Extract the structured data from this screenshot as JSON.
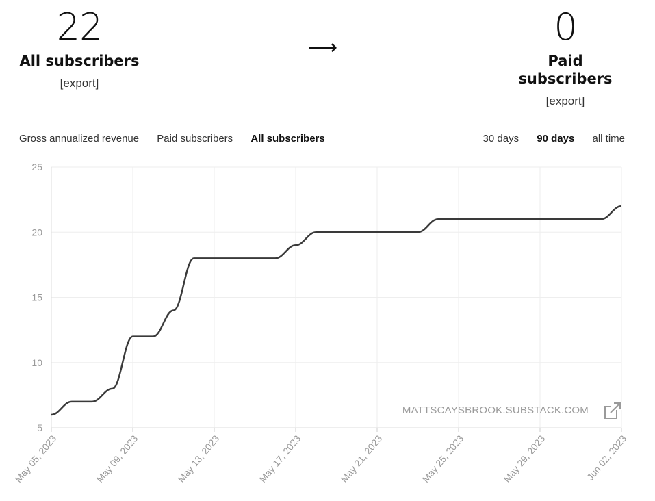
{
  "stats": {
    "all": {
      "value": "22",
      "label": "All subscribers",
      "export": "[export]"
    },
    "arrow": "⟶",
    "paid": {
      "value": "0",
      "label": "Paid subscribers",
      "export": "[export]"
    }
  },
  "metric_tabs": [
    {
      "label": "Gross annualized revenue",
      "active": false
    },
    {
      "label": "Paid subscribers",
      "active": false
    },
    {
      "label": "All subscribers",
      "active": true
    }
  ],
  "range_tabs": [
    {
      "label": "30 days",
      "active": false
    },
    {
      "label": "90 days",
      "active": true
    },
    {
      "label": "all time",
      "active": false
    }
  ],
  "watermark": "MATTSCAYSBROOK.SUBSTACK.COM",
  "colors": {
    "line": "#3a3a3a",
    "grid": "#eeeeee",
    "tick": "#999999"
  },
  "chart_data": {
    "type": "line",
    "x": [
      "May 05, 2023",
      "May 06, 2023",
      "May 07, 2023",
      "May 08, 2023",
      "May 09, 2023",
      "May 10, 2023",
      "May 11, 2023",
      "May 12, 2023",
      "May 13, 2023",
      "May 14, 2023",
      "May 15, 2023",
      "May 16, 2023",
      "May 17, 2023",
      "May 18, 2023",
      "May 19, 2023",
      "May 20, 2023",
      "May 21, 2023",
      "May 22, 2023",
      "May 23, 2023",
      "May 24, 2023",
      "May 25, 2023",
      "May 26, 2023",
      "May 27, 2023",
      "May 28, 2023",
      "May 29, 2023",
      "May 30, 2023",
      "May 31, 2023",
      "Jun 01, 2023",
      "Jun 02, 2023"
    ],
    "series": [
      {
        "values": [
          6,
          7,
          7,
          8,
          12,
          12,
          14,
          18,
          18,
          18,
          18,
          18,
          19,
          20,
          20,
          20,
          20,
          20,
          20,
          21,
          21,
          21,
          21,
          21,
          21,
          21,
          21,
          21,
          22
        ]
      }
    ],
    "xtick_labels": [
      "May 05, 2023",
      "May 09, 2023",
      "May 13, 2023",
      "May 17, 2023",
      "May 21, 2023",
      "May 25, 2023",
      "May 29, 2023",
      "Jun 02, 2023"
    ],
    "yticks": [
      5,
      10,
      15,
      20,
      25
    ],
    "ylim": [
      5,
      25
    ],
    "grid": true
  }
}
